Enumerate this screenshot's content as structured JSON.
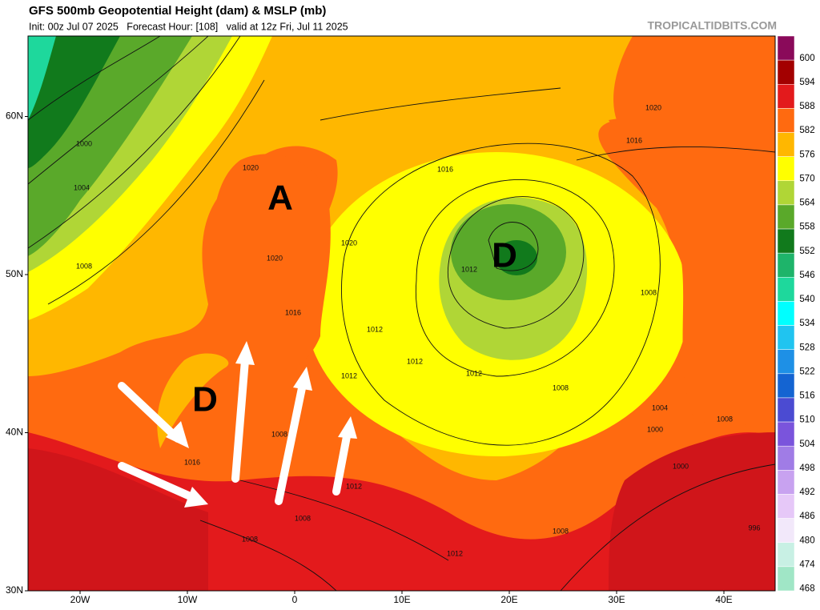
{
  "header": {
    "title": "GFS 500mb Geopotential Height (dam) & MSLP (mb)",
    "subtitle": "Init: 00z Jul 07 2025   Forecast Hour: [108]   valid at 12z Fri, Jul 11 2025",
    "source": "TROPICALTIDBITS.COM"
  },
  "map": {
    "lat_ticks": [
      {
        "value": 60,
        "label": "60N"
      },
      {
        "value": 50,
        "label": "50N"
      },
      {
        "value": 40,
        "label": "40N"
      },
      {
        "value": 30,
        "label": "30N"
      }
    ],
    "lon_ticks": [
      {
        "value": -20,
        "label": "20W"
      },
      {
        "value": -10,
        "label": "10W"
      },
      0,
      {
        "value": 10,
        "label": "10E"
      },
      {
        "value": 20,
        "label": "20E"
      },
      {
        "value": 30,
        "label": "30E"
      },
      {
        "value": 40,
        "label": "40E"
      }
    ],
    "annotations": [
      "A",
      "D",
      "D"
    ],
    "isobar_labels": [
      "1000",
      "1004",
      "1008",
      "1020",
      "1020",
      "1016",
      "1020",
      "1016",
      "1012",
      "1012",
      "1012",
      "1012",
      "1012",
      "1008",
      "1008",
      "1004",
      "1000",
      "1000",
      "1008",
      "1012",
      "1008",
      "1016",
      "1008",
      "1012",
      "1008",
      "996",
      "1020",
      "1016",
      "1008"
    ]
  },
  "colorbar": {
    "levels": [
      600,
      594,
      588,
      582,
      576,
      570,
      564,
      558,
      552,
      546,
      540,
      534,
      528,
      522,
      516,
      510,
      504,
      498,
      492,
      486,
      480,
      474,
      468
    ],
    "colors": [
      "#8a0a5a",
      "#a30000",
      "#e31a1c",
      "#ff6a10",
      "#ffb700",
      "#ffff00",
      "#b0d636",
      "#5aa92a",
      "#117a1c",
      "#1eb46a",
      "#1ed89c",
      "#00ffff",
      "#20c4f0",
      "#1e90e6",
      "#1464d2",
      "#4b4bd2",
      "#7a54dc",
      "#a07ce6",
      "#c8a2f0",
      "#e6c8f8",
      "#f2e8fa",
      "#c8f0e4",
      "#a0e6c6"
    ]
  }
}
